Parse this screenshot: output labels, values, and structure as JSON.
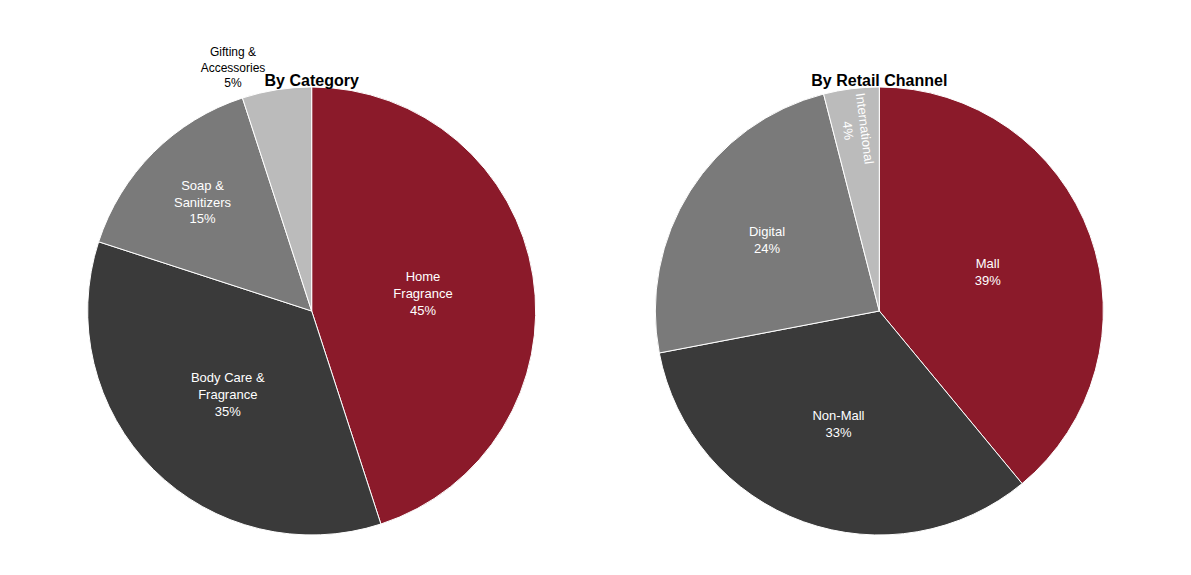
{
  "chart_data": [
    {
      "type": "pie",
      "title": "By Category",
      "categories": [
        "Home\nFragrance\n45%",
        "Body Care &\nFragrance\n35%",
        "Soap &\nSanitizers\n15%",
        "Gifting &\nAccessories\n5%"
      ],
      "values": [
        45,
        35,
        15,
        5
      ],
      "colors": [
        "#8B1A2A",
        "#3A3A3A",
        "#7A7A7A",
        "#BBBBBB"
      ]
    },
    {
      "type": "pie",
      "title": "By Retail Channel",
      "categories": [
        "Mall\n39%",
        "Non-Mall\n33%",
        "Digital\n24%",
        "International\n4%"
      ],
      "values": [
        39,
        33,
        24,
        4
      ],
      "colors": [
        "#8B1A2A",
        "#3A3A3A",
        "#7A7A7A",
        "#BBBBBB"
      ]
    }
  ]
}
